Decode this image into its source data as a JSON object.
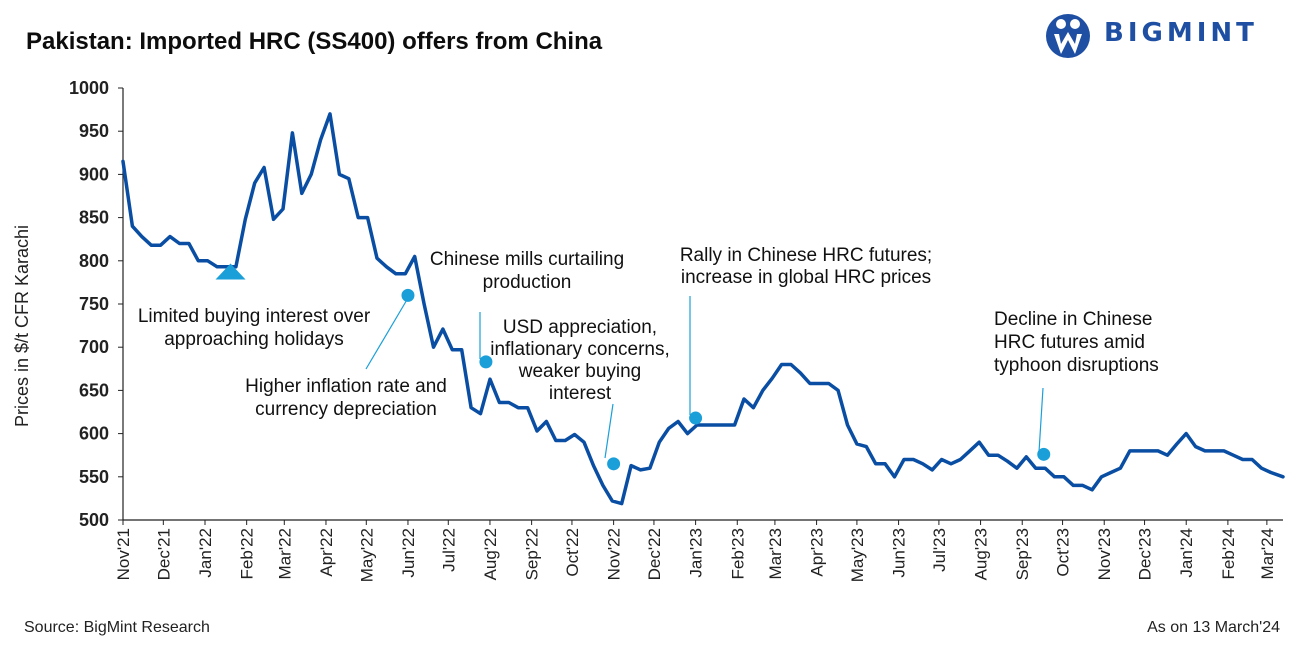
{
  "title": "Pakistan: Imported HRC (SS400) offers from China",
  "logo": {
    "text": "BIGMINT"
  },
  "footer": {
    "source": "Source: BigMint Research",
    "as_on": "As on 13 March'24"
  },
  "colors": {
    "line": "#0a4ea3",
    "marker": "#1a9fd9",
    "axis": "#222222",
    "brand": "#1f4fa3"
  },
  "chart_data": {
    "type": "line",
    "title": "Pakistan: Imported HRC (SS400) offers from China",
    "ylabel": "Prices in $/t CFR Karachi",
    "xlabel": "",
    "ylim": [
      500,
      1000
    ],
    "yticks": [
      500,
      550,
      600,
      650,
      700,
      750,
      800,
      850,
      900,
      950,
      1000
    ],
    "grid": false,
    "xlim": [
      "2021-11-01",
      "2024-03-13"
    ],
    "xticks": [
      {
        "label": "Nov'21",
        "date": "2021-11-01"
      },
      {
        "label": "Dec'21",
        "date": "2021-12-01"
      },
      {
        "label": "Jan'22",
        "date": "2022-01-01"
      },
      {
        "label": "Feb'22",
        "date": "2022-02-01"
      },
      {
        "label": "Mar'22",
        "date": "2022-03-01"
      },
      {
        "label": "Apr'22",
        "date": "2022-04-01"
      },
      {
        "label": "May'22",
        "date": "2022-05-01"
      },
      {
        "label": "Jun'22",
        "date": "2022-06-01"
      },
      {
        "label": "Jul'22",
        "date": "2022-07-01"
      },
      {
        "label": "Aug'22",
        "date": "2022-08-01"
      },
      {
        "label": "Sep'22",
        "date": "2022-09-01"
      },
      {
        "label": "Oct'22",
        "date": "2022-10-01"
      },
      {
        "label": "Nov'22",
        "date": "2022-11-01"
      },
      {
        "label": "Dec'22",
        "date": "2022-12-01"
      },
      {
        "label": "Jan'23",
        "date": "2023-01-01"
      },
      {
        "label": "Feb'23",
        "date": "2023-02-01"
      },
      {
        "label": "Mar'23",
        "date": "2023-03-01"
      },
      {
        "label": "Apr'23",
        "date": "2023-04-01"
      },
      {
        "label": "May'23",
        "date": "2023-05-01"
      },
      {
        "label": "Jun'23",
        "date": "2023-06-01"
      },
      {
        "label": "Jul'23",
        "date": "2023-07-01"
      },
      {
        "label": "Aug'23",
        "date": "2023-08-01"
      },
      {
        "label": "Sep'23",
        "date": "2023-09-01"
      },
      {
        "label": "Oct'23",
        "date": "2023-10-01"
      },
      {
        "label": "Nov'23",
        "date": "2023-11-01"
      },
      {
        "label": "Dec'23",
        "date": "2023-12-01"
      },
      {
        "label": "Jan'24",
        "date": "2024-01-01"
      },
      {
        "label": "Feb'24",
        "date": "2024-02-01"
      },
      {
        "label": "Mar'24",
        "date": "2024-03-01"
      }
    ],
    "series": [
      {
        "x": [
          "2021-11-01",
          "2021-11-08",
          "2021-11-15",
          "2021-11-22",
          "2021-11-29",
          "2021-12-06",
          "2021-12-13",
          "2021-12-20",
          "2021-12-27",
          "2022-01-03",
          "2022-01-10",
          "2022-01-17",
          "2022-01-24",
          "2022-01-31",
          "2022-02-07",
          "2022-02-14",
          "2022-02-21",
          "2022-02-28",
          "2022-03-07",
          "2022-03-14",
          "2022-03-21",
          "2022-03-28",
          "2022-04-04",
          "2022-04-11",
          "2022-04-18",
          "2022-04-25",
          "2022-05-02",
          "2022-05-09",
          "2022-05-16",
          "2022-05-23",
          "2022-05-30",
          "2022-06-06",
          "2022-06-13",
          "2022-06-20",
          "2022-06-27",
          "2022-07-04",
          "2022-07-11",
          "2022-07-18",
          "2022-07-25",
          "2022-08-01",
          "2022-08-08",
          "2022-08-15",
          "2022-08-22",
          "2022-08-29",
          "2022-09-05",
          "2022-09-12",
          "2022-09-19",
          "2022-09-26",
          "2022-10-03",
          "2022-10-10",
          "2022-10-17",
          "2022-10-24",
          "2022-10-31",
          "2022-11-07",
          "2022-11-14",
          "2022-11-21",
          "2022-11-28",
          "2022-12-05",
          "2022-12-12",
          "2022-12-19",
          "2022-12-26",
          "2023-01-02",
          "2023-01-09",
          "2023-01-16",
          "2023-01-23",
          "2023-01-30",
          "2023-02-06",
          "2023-02-13",
          "2023-02-20",
          "2023-02-27",
          "2023-03-06",
          "2023-03-13",
          "2023-03-20",
          "2023-03-27",
          "2023-04-03",
          "2023-04-10",
          "2023-04-17",
          "2023-04-24",
          "2023-05-01",
          "2023-05-08",
          "2023-05-15",
          "2023-05-22",
          "2023-05-29",
          "2023-06-05",
          "2023-06-12",
          "2023-06-19",
          "2023-06-26",
          "2023-07-03",
          "2023-07-10",
          "2023-07-17",
          "2023-07-24",
          "2023-07-31",
          "2023-08-07",
          "2023-08-14",
          "2023-08-21",
          "2023-08-28",
          "2023-09-04",
          "2023-09-11",
          "2023-09-18",
          "2023-09-25",
          "2023-10-02",
          "2023-10-09",
          "2023-10-16",
          "2023-10-23",
          "2023-10-30",
          "2023-11-06",
          "2023-11-13",
          "2023-11-20",
          "2023-11-27",
          "2023-12-04",
          "2023-12-11",
          "2023-12-18",
          "2023-12-25",
          "2024-01-01",
          "2024-01-08",
          "2024-01-15",
          "2024-01-22",
          "2024-01-29",
          "2024-02-05",
          "2024-02-12",
          "2024-02-19",
          "2024-02-26",
          "2024-03-04",
          "2024-03-13"
        ],
        "y": [
          915,
          840,
          828,
          818,
          818,
          828,
          820,
          820,
          800,
          800,
          793,
          793,
          793,
          848,
          890,
          908,
          848,
          860,
          948,
          878,
          900,
          940,
          970,
          900,
          895,
          850,
          850,
          803,
          793,
          785,
          785,
          805,
          750,
          700,
          721,
          697,
          697,
          630,
          623,
          663,
          636,
          636,
          630,
          630,
          603,
          614,
          592,
          592,
          599,
          590,
          563,
          540,
          522,
          519,
          563,
          558,
          560,
          590,
          606,
          614,
          600,
          610,
          610,
          610,
          610,
          610,
          640,
          630,
          650,
          664,
          680,
          680,
          670,
          658,
          658,
          658,
          650,
          610,
          588,
          585,
          565,
          565,
          550,
          570,
          570,
          565,
          558,
          570,
          565,
          570,
          580,
          590,
          575,
          575,
          568,
          560,
          573,
          560,
          560,
          550,
          550,
          540,
          540,
          535,
          550,
          555,
          560,
          580,
          580,
          580,
          580,
          575,
          588,
          600,
          585,
          580,
          580,
          580,
          575,
          570,
          570,
          560,
          555,
          550
        ]
      }
    ],
    "markers": [
      {
        "type": "triangle",
        "x": "2022-01-20",
        "y": 790
      },
      {
        "type": "dot",
        "x": "2022-06-01",
        "y": 760
      },
      {
        "type": "dot",
        "x": "2022-07-29",
        "y": 683
      },
      {
        "type": "dot",
        "x": "2022-11-01",
        "y": 565
      },
      {
        "type": "dot",
        "x": "2023-01-01",
        "y": 618
      },
      {
        "type": "dot",
        "x": "2023-09-17",
        "y": 576
      }
    ],
    "annotations": [
      {
        "lines": [
          "Limited buying interest over",
          "approaching holidays"
        ]
      },
      {
        "lines": [
          "Higher inflation rate and",
          "currency depreciation"
        ]
      },
      {
        "lines": [
          "Chinese mills curtailing",
          "production"
        ]
      },
      {
        "lines": [
          "USD appreciation,",
          "inflationary concerns,",
          "weaker buying",
          "interest"
        ]
      },
      {
        "lines": [
          "Rally in Chinese HRC futures;",
          "increase in global HRC prices"
        ]
      },
      {
        "lines": [
          "Decline in Chinese",
          "HRC futures amid",
          "typhoon disruptions"
        ]
      }
    ]
  }
}
